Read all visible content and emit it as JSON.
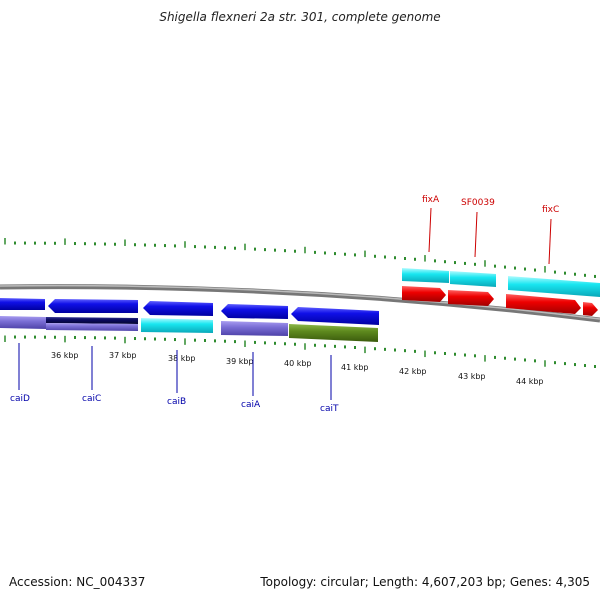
{
  "header": {
    "title": "Shigella flexneri 2a str. 301, complete genome"
  },
  "footer": {
    "accession": "Accession: NC_004337",
    "summary": "Topology: circular; Length: 4,607,203 bp; Genes: 4,305"
  },
  "colors": {
    "forward_gene_label": "#cc0000",
    "reverse_gene_label": "#0000aa",
    "tick": "#2e8b2e",
    "backbone": "#888888",
    "blue_cds": "#1010e8",
    "navy_cds": "#0a0a60",
    "lavender_cds": "#7b6fd6",
    "cyan_cds": "#19e6f0",
    "olive_cds": "#5e8a1e",
    "red_cds": "#ee0000"
  },
  "axis": {
    "labels": [
      "36 kbp",
      "37 kbp",
      "38 kbp",
      "39 kbp",
      "40 kbp",
      "41 kbp",
      "42 kbp",
      "43 kbp",
      "44 kbp"
    ]
  },
  "genes": {
    "reverse": [
      {
        "name": "caiD",
        "icon": "gene-marker"
      },
      {
        "name": "caiC",
        "icon": "gene-marker"
      },
      {
        "name": "caiB",
        "icon": "gene-marker"
      },
      {
        "name": "caiA",
        "icon": "gene-marker"
      },
      {
        "name": "caiT",
        "icon": "gene-marker"
      }
    ],
    "forward": [
      {
        "name": "fixA",
        "icon": "gene-marker"
      },
      {
        "name": "SF0039",
        "icon": "gene-marker"
      },
      {
        "name": "fixC",
        "icon": "gene-marker"
      }
    ]
  }
}
